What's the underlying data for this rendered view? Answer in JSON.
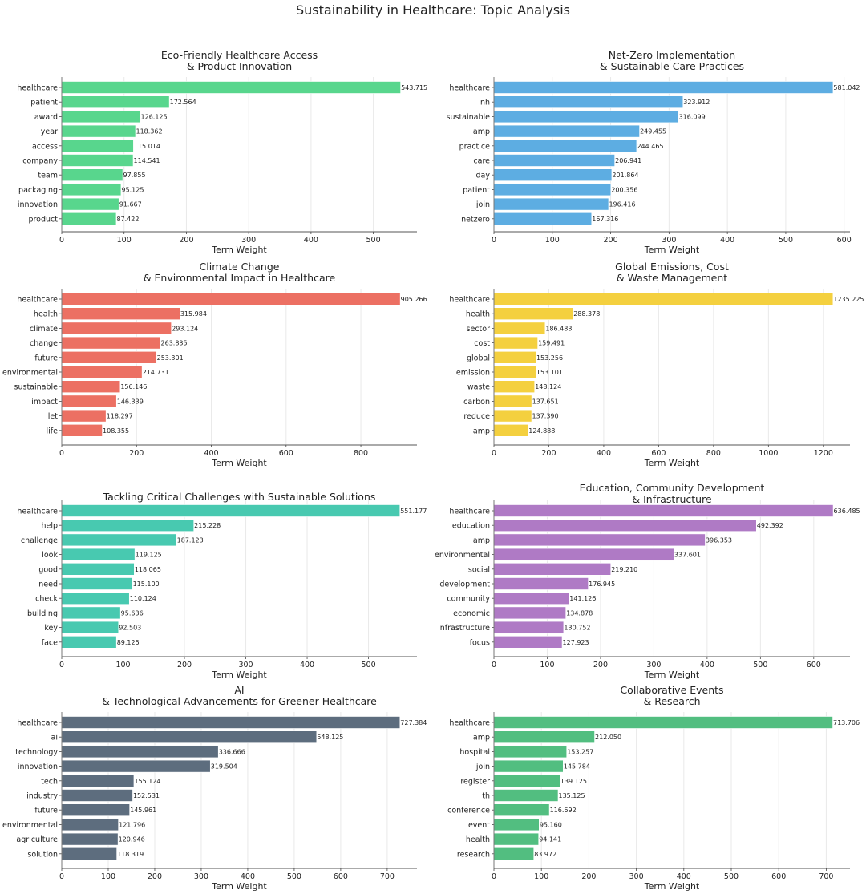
{
  "title": "Sustainability in Healthcare: Topic Analysis",
  "chart_data": [
    {
      "type": "bar",
      "orientation": "horizontal",
      "title": "Eco-Friendly Healthcare Access\n& Product Innovation",
      "xlabel": "Term Weight",
      "ylabel": "",
      "color": "#58D68D",
      "xlim": [
        0,
        570
      ],
      "xticks": [
        0,
        100,
        200,
        300,
        400,
        500
      ],
      "grid": "x",
      "categories": [
        "healthcare",
        "patient",
        "award",
        "year",
        "access",
        "company",
        "team",
        "packaging",
        "innovation",
        "product"
      ],
      "values": [
        543.715,
        172.564,
        126.125,
        118.362,
        115.014,
        114.541,
        97.855,
        95.125,
        91.667,
        87.422
      ]
    },
    {
      "type": "bar",
      "orientation": "horizontal",
      "title": "Net-Zero Implementation\n& Sustainable Care Practices",
      "xlabel": "Term Weight",
      "ylabel": "",
      "color": "#5DADE2",
      "xlim": [
        0,
        610
      ],
      "xticks": [
        0,
        100,
        200,
        300,
        400,
        500,
        600
      ],
      "grid": "x",
      "categories": [
        "healthcare",
        "nh",
        "sustainable",
        "amp",
        "practice",
        "care",
        "day",
        "patient",
        "join",
        "netzero"
      ],
      "values": [
        581.042,
        323.912,
        316.099,
        249.455,
        244.465,
        206.941,
        201.864,
        200.356,
        196.416,
        167.316
      ]
    },
    {
      "type": "bar",
      "orientation": "horizontal",
      "title": "Climate Change\n& Environmental Impact in Healthcare",
      "xlabel": "Term Weight",
      "ylabel": "",
      "color": "#EC7063",
      "xlim": [
        0,
        950
      ],
      "xticks": [
        0,
        200,
        400,
        600,
        800
      ],
      "grid": "x",
      "categories": [
        "healthcare",
        "health",
        "climate",
        "change",
        "future",
        "environmental",
        "sustainable",
        "impact",
        "let",
        "life"
      ],
      "values": [
        905.266,
        315.984,
        293.124,
        263.835,
        253.301,
        214.731,
        156.146,
        146.339,
        118.297,
        108.355
      ]
    },
    {
      "type": "bar",
      "orientation": "horizontal",
      "title": "Global Emissions, Cost\n& Waste Management",
      "xlabel": "Term Weight",
      "ylabel": "",
      "color": "#F4D03F",
      "xlim": [
        0,
        1297
      ],
      "xticks": [
        0,
        200,
        400,
        600,
        800,
        1000,
        1200
      ],
      "grid": "x",
      "categories": [
        "healthcare",
        "health",
        "sector",
        "cost",
        "global",
        "emission",
        "waste",
        "carbon",
        "reduce",
        "amp"
      ],
      "values": [
        1235.225,
        288.378,
        186.483,
        159.491,
        153.256,
        153.101,
        148.124,
        137.651,
        137.39,
        124.888
      ]
    },
    {
      "type": "bar",
      "orientation": "horizontal",
      "title": "Tackling Critical Challenges with Sustainable Solutions",
      "xlabel": "Term Weight",
      "ylabel": "",
      "color": "#48C9B0",
      "xlim": [
        0,
        579
      ],
      "xticks": [
        0,
        100,
        200,
        300,
        400,
        500
      ],
      "grid": "x",
      "categories": [
        "healthcare",
        "help",
        "challenge",
        "look",
        "good",
        "need",
        "check",
        "building",
        "key",
        "face"
      ],
      "values": [
        551.177,
        215.228,
        187.123,
        119.125,
        118.065,
        115.1,
        110.124,
        95.636,
        92.503,
        89.125
      ]
    },
    {
      "type": "bar",
      "orientation": "horizontal",
      "title": "Education, Community Development\n& Infrastructure",
      "xlabel": "Term Weight",
      "ylabel": "",
      "color": "#AF7AC5",
      "xlim": [
        0,
        668
      ],
      "xticks": [
        0,
        100,
        200,
        300,
        400,
        500,
        600
      ],
      "grid": "x",
      "categories": [
        "healthcare",
        "education",
        "amp",
        "environmental",
        "social",
        "development",
        "community",
        "economic",
        "infrastructure",
        "focus"
      ],
      "values": [
        636.485,
        492.392,
        396.353,
        337.601,
        219.21,
        176.945,
        141.126,
        134.878,
        130.752,
        127.923
      ]
    },
    {
      "type": "bar",
      "orientation": "horizontal",
      "title": "AI\n& Technological Advancements for Greener Healthcare",
      "xlabel": "Term Weight",
      "ylabel": "",
      "color": "#5D6D7E",
      "xlim": [
        0,
        764
      ],
      "xticks": [
        0,
        100,
        200,
        300,
        400,
        500,
        600,
        700
      ],
      "grid": "x",
      "categories": [
        "healthcare",
        "ai",
        "technology",
        "innovation",
        "tech",
        "industry",
        "future",
        "environmental",
        "agriculture",
        "solution"
      ],
      "values": [
        727.384,
        548.125,
        336.666,
        319.504,
        155.124,
        152.531,
        145.961,
        121.796,
        120.946,
        118.319
      ]
    },
    {
      "type": "bar",
      "orientation": "horizontal",
      "title": "Collaborative Events\n& Research",
      "xlabel": "Term Weight",
      "ylabel": "",
      "color": "#52BE80",
      "xlim": [
        0,
        750
      ],
      "xticks": [
        0,
        100,
        200,
        300,
        400,
        500,
        600,
        700
      ],
      "grid": "x",
      "categories": [
        "healthcare",
        "amp",
        "hospital",
        "join",
        "register",
        "th",
        "conference",
        "event",
        "health",
        "research"
      ],
      "values": [
        713.706,
        212.05,
        153.257,
        145.784,
        139.125,
        135.125,
        116.692,
        95.16,
        94.141,
        83.972
      ]
    }
  ]
}
